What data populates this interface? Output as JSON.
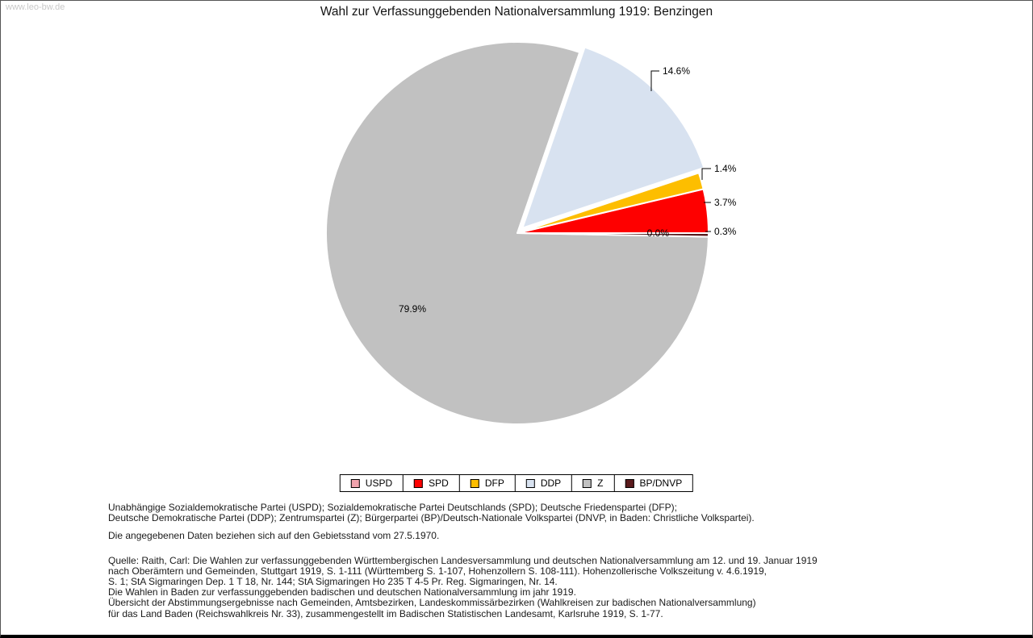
{
  "watermark": "www.leo-bw.de",
  "title": "Wahl zur Verfassunggebenden Nationalversammlung 1919: Benzingen",
  "chart_data": {
    "type": "pie",
    "title": "Wahl zur Verfassunggebenden Nationalversammlung 1919: Benzingen",
    "legend_position": "bottom",
    "start_angle_deg": 0,
    "direction": "counterclockwise",
    "slices": [
      {
        "label": "USPD",
        "value": 0.0,
        "display": "0.0%",
        "color": "#f0a2ac"
      },
      {
        "label": "SPD",
        "value": 3.7,
        "display": "3.7%",
        "color": "#fe0000"
      },
      {
        "label": "DFP",
        "value": 1.4,
        "display": "1.4%",
        "color": "#fdbe00"
      },
      {
        "label": "DDP",
        "value": 14.6,
        "display": "14.6%",
        "color": "#d8e2f0",
        "exploded": true
      },
      {
        "label": "Z",
        "value": 79.9,
        "display": "79.9%",
        "color": "#c1c1c1"
      },
      {
        "label": "BP/DNVP",
        "value": 0.3,
        "display": "0.3%",
        "color": "#5a1a1c"
      }
    ]
  },
  "footer": {
    "paragraphs": [
      [
        "Unabhängige Sozialdemokratische Partei (USPD); Sozialdemokratische Partei Deutschlands (SPD); Deutsche Friedenspartei (DFP);",
        "Deutsche Demokratische Partei (DDP); Zentrumspartei (Z); Bürgerpartei (BP)/Deutsch-Nationale Volkspartei (DNVP, in Baden: Christliche Volkspartei)."
      ],
      [
        "Die angegebenen Daten beziehen sich auf den Gebietsstand vom 27.5.1970."
      ],
      [
        "Quelle: Raith, Carl: Die Wahlen zur verfassunggebenden Württembergischen Landesversammlung und deutschen Nationalversammlung am 12. und 19. Januar 1919",
        "nach Oberämtern und Gemeinden, Stuttgart 1919, S. 1-111 (Württemberg S. 1-107, Hohenzollern S. 108-111). Hohenzollerische Volkszeitung v. 4.6.1919,",
        "S. 1; StA Sigmaringen Dep. 1 T 18, Nr. 144; StA Sigmaringen Ho 235 T 4-5 Pr. Reg. Sigmaringen, Nr. 14.",
        "Die Wahlen in Baden zur verfassunggebenden badischen und deutschen Nationalversammlung im jahr 1919.",
        "Übersicht der Abstimmungsergebnisse nach Gemeinden, Amtsbezirken, Landeskommissärbezirken (Wahlkreisen zur badischen Nationalversammlung)",
        "für das Land Baden (Reichswahlkreis Nr. 33), zusammengestellt im Badischen Statistischen Landesamt, Karlsruhe 1919, S. 1-77."
      ]
    ]
  }
}
